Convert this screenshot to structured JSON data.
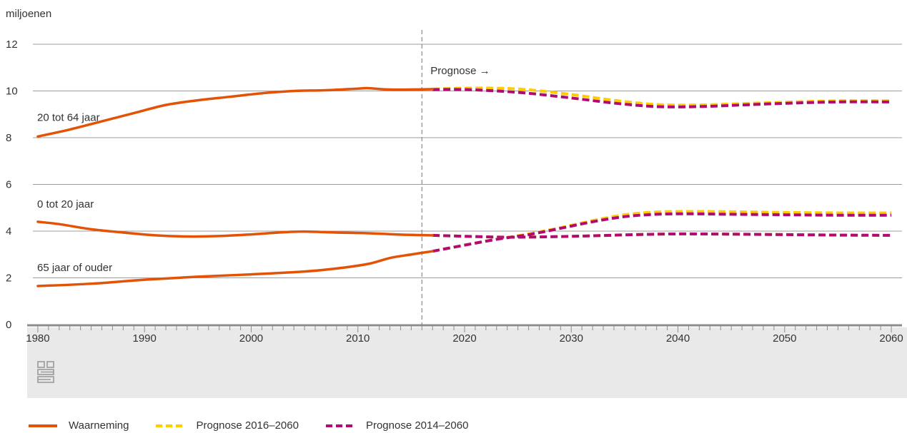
{
  "chart_data": {
    "type": "line",
    "ylabel": "miljoenen",
    "ylim": [
      0,
      12
    ],
    "yticks": [
      0,
      2,
      4,
      6,
      8,
      10,
      12
    ],
    "xlim": [
      1979,
      2061
    ],
    "xticks": [
      1980,
      1990,
      2000,
      2010,
      2020,
      2030,
      2040,
      2050,
      2060
    ],
    "grid": true,
    "divider_year": 2016,
    "divider_label": "Prognose",
    "divider_arrow": "→",
    "legend_position": "bottom",
    "legend": [
      {
        "name": "Waarneming",
        "color": "#e35205",
        "style": "solid"
      },
      {
        "name": "Prognose 2016–2060",
        "color": "#ffcc00",
        "style": "dashed"
      },
      {
        "name": "Prognose 2014–2060",
        "color": "#af0b73",
        "style": "dashed"
      }
    ],
    "groups": [
      {
        "label": "20 tot 64 jaar",
        "observed": {
          "x": [
            1980,
            1983,
            1986,
            1989,
            1992,
            1995,
            1998,
            2001,
            2004,
            2007,
            2010,
            2011,
            2013,
            2016,
            2017
          ],
          "y": [
            8.05,
            8.35,
            8.7,
            9.05,
            9.4,
            9.6,
            9.75,
            9.9,
            10.0,
            10.03,
            10.1,
            10.12,
            10.06,
            10.07,
            10.08
          ]
        },
        "forecast_2016": {
          "x": [
            2017,
            2020,
            2023,
            2026,
            2030,
            2034,
            2038,
            2042,
            2046,
            2050,
            2055,
            2060
          ],
          "y": [
            10.08,
            10.12,
            10.12,
            10.05,
            9.85,
            9.6,
            9.42,
            9.4,
            9.46,
            9.52,
            9.58,
            9.58
          ]
        },
        "forecast_2014": {
          "x": [
            2017,
            2020,
            2023,
            2026,
            2030,
            2034,
            2038,
            2042,
            2046,
            2050,
            2055,
            2060
          ],
          "y": [
            10.06,
            10.06,
            10.0,
            9.9,
            9.7,
            9.48,
            9.33,
            9.33,
            9.4,
            9.47,
            9.53,
            9.53
          ]
        }
      },
      {
        "label": "0 tot 20 jaar",
        "observed": {
          "x": [
            1980,
            1982,
            1985,
            1988,
            1991,
            1994,
            1997,
            2000,
            2003,
            2005,
            2008,
            2011,
            2014,
            2017
          ],
          "y": [
            4.4,
            4.3,
            4.08,
            3.94,
            3.82,
            3.77,
            3.79,
            3.86,
            3.95,
            3.98,
            3.94,
            3.91,
            3.85,
            3.82
          ]
        },
        "forecast_2016": {
          "x": [
            2017,
            2020,
            2024,
            2028,
            2032,
            2036,
            2040,
            2045,
            2050,
            2055,
            2060
          ],
          "y": [
            3.82,
            3.78,
            3.74,
            3.76,
            3.8,
            3.85,
            3.88,
            3.87,
            3.85,
            3.83,
            3.82
          ]
        },
        "forecast_2014": {
          "x": [
            2017,
            2020,
            2024,
            2028,
            2032,
            2036,
            2040,
            2045,
            2050,
            2055,
            2060
          ],
          "y": [
            3.82,
            3.78,
            3.74,
            3.76,
            3.8,
            3.85,
            3.88,
            3.87,
            3.85,
            3.83,
            3.82
          ]
        }
      },
      {
        "label": "65 jaar of ouder",
        "observed": {
          "x": [
            1980,
            1985,
            1990,
            1995,
            2000,
            2005,
            2008,
            2011,
            2013,
            2015,
            2017
          ],
          "y": [
            1.65,
            1.75,
            1.92,
            2.05,
            2.15,
            2.27,
            2.4,
            2.6,
            2.85,
            3.0,
            3.14
          ]
        },
        "forecast_2016": {
          "x": [
            2017,
            2020,
            2023,
            2026,
            2029,
            2032,
            2035,
            2038,
            2041,
            2045,
            2050,
            2055,
            2060
          ],
          "y": [
            3.14,
            3.4,
            3.65,
            3.88,
            4.15,
            4.45,
            4.7,
            4.82,
            4.84,
            4.83,
            4.8,
            4.78,
            4.78
          ]
        },
        "forecast_2014": {
          "x": [
            2017,
            2020,
            2023,
            2026,
            2029,
            2032,
            2035,
            2038,
            2041,
            2045,
            2050,
            2055,
            2060
          ],
          "y": [
            3.14,
            3.4,
            3.65,
            3.85,
            4.12,
            4.4,
            4.62,
            4.72,
            4.74,
            4.72,
            4.7,
            4.68,
            4.68
          ]
        }
      }
    ]
  },
  "logo": {
    "name": "cbs-logo-icon",
    "text": "cbs"
  }
}
